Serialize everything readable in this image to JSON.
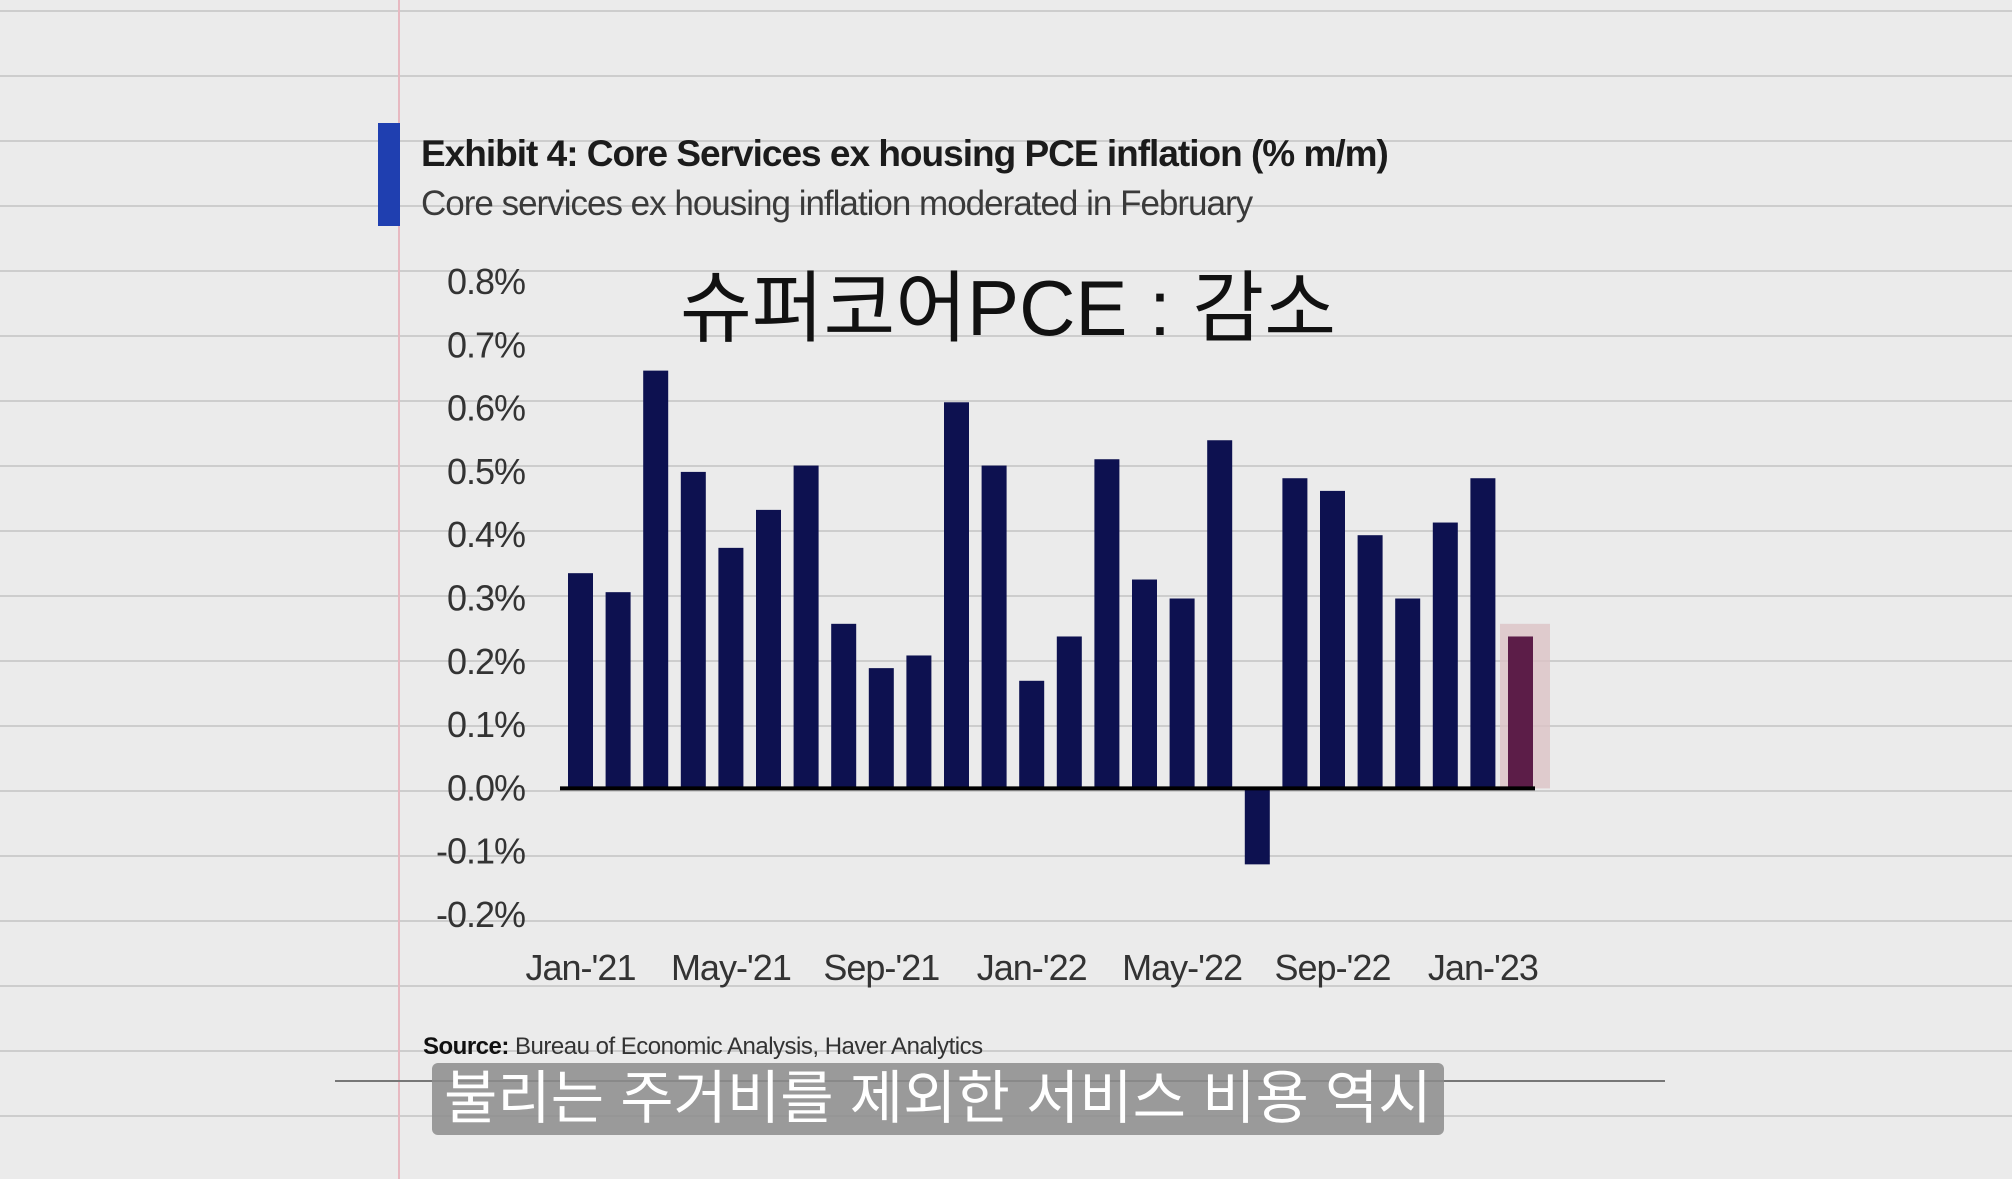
{
  "chart_data": {
    "type": "bar",
    "title": "Exhibit 4: Core Services ex housing PCE inflation (% m/m)",
    "subtitle": "Core services ex housing inflation moderated in February",
    "overlay_caption": "슈퍼코어PCE : 감소",
    "x": [
      "Jan-'21",
      "Feb-'21",
      "Mar-'21",
      "Apr-'21",
      "May-'21",
      "Jun-'21",
      "Jul-'21",
      "Aug-'21",
      "Sep-'21",
      "Oct-'21",
      "Nov-'21",
      "Dec-'21",
      "Jan-'22",
      "Feb-'22",
      "Mar-'22",
      "Apr-'22",
      "May-'22",
      "Jun-'22",
      "Jul-'22",
      "Aug-'22",
      "Sep-'22",
      "Oct-'22",
      "Nov-'22",
      "Dec-'22",
      "Jan-'23",
      "Feb-'23"
    ],
    "values": [
      0.34,
      0.31,
      0.66,
      0.5,
      0.38,
      0.44,
      0.51,
      0.26,
      0.19,
      0.21,
      0.61,
      0.51,
      0.17,
      0.24,
      0.52,
      0.33,
      0.3,
      0.55,
      -0.12,
      0.49,
      0.47,
      0.4,
      0.3,
      0.42,
      0.49,
      0.24
    ],
    "xtick_labels": [
      "Jan-'21",
      "May-'21",
      "Sep-'21",
      "Jan-'22",
      "May-'22",
      "Sep-'22",
      "Jan-'23"
    ],
    "ytick_labels": [
      "0.8%",
      "0.7%",
      "0.6%",
      "0.5%",
      "0.4%",
      "0.3%",
      "0.2%",
      "0.1%",
      "0.0%",
      "-0.1%",
      "-0.2%"
    ],
    "ylim": [
      -0.2,
      0.8
    ],
    "highlight_last": true,
    "colors": {
      "bar": "#0d1150",
      "highlight_bar": "#5c1d48",
      "highlight_box": "#dcc3c6",
      "zero_line": "#000000"
    }
  },
  "source": {
    "label": "Source:",
    "text": "Bureau of Economic Analysis, Haver Analytics"
  },
  "video_subtitle": "불리는 주거비를 제외한 서비스 비용 역시"
}
